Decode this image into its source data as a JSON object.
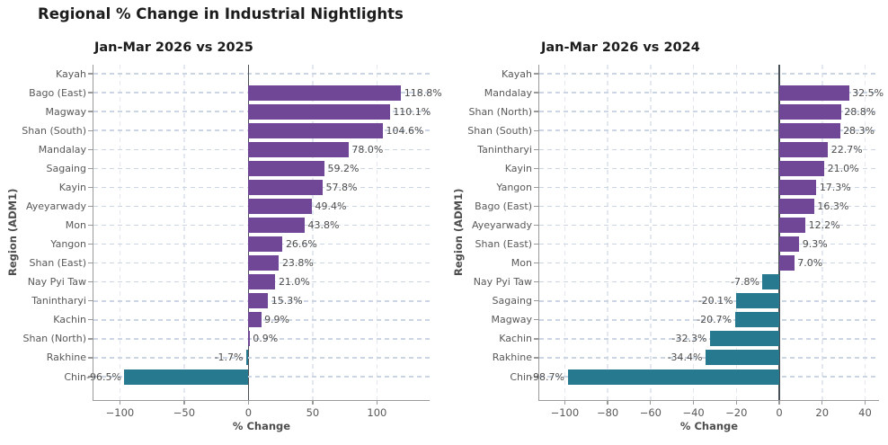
{
  "figure": {
    "title": "Regional % Change in Industrial Nightlights"
  },
  "colors": {
    "positive_bar": "#6f4796",
    "negative_bar": "#27798f",
    "grid": "#ccd5e3",
    "zero_line": "#4a5057",
    "spine": "#9a9a9a",
    "tick_text": "#595959",
    "value_text": "#4d4d4d",
    "title_text": "#1c1c1c"
  },
  "chart_data": [
    {
      "type": "bar",
      "orientation": "horizontal",
      "title": "Jan-Mar 2026 vs 2025",
      "xlabel": "% Change",
      "ylabel": "Region (ADM1)",
      "xlim": [
        -120.6,
        141.0
      ],
      "grid": true,
      "xticks": [
        {
          "v": -100,
          "label": "−100"
        },
        {
          "v": -50,
          "label": "−50"
        },
        {
          "v": 0,
          "label": "0"
        },
        {
          "v": 50,
          "label": "50"
        },
        {
          "v": 100,
          "label": "100"
        }
      ],
      "categories": [
        "Kayah",
        "Bago (East)",
        "Magway",
        "Shan (South)",
        "Mandalay",
        "Sagaing",
        "Kayin",
        "Ayeyarwady",
        "Mon",
        "Yangon",
        "Shan (East)",
        "Nay Pyi Taw",
        "Tanintharyi",
        "Kachin",
        "Shan (North)",
        "Rakhine",
        "Chin"
      ],
      "values": [
        null,
        118.8,
        110.1,
        104.6,
        78.0,
        59.2,
        57.8,
        49.4,
        43.8,
        26.6,
        23.8,
        21.0,
        15.3,
        9.9,
        0.9,
        -1.7,
        -96.5
      ],
      "value_labels": [
        null,
        "118.8%",
        "110.1%",
        "104.6%",
        "78.0%",
        "59.2%",
        "57.8%",
        "49.4%",
        "43.8%",
        "26.6%",
        "23.8%",
        "21.0%",
        "15.3%",
        "9.9%",
        "0.9%",
        "-1.7%",
        "-96.5%"
      ]
    },
    {
      "type": "bar",
      "orientation": "horizontal",
      "title": "Jan-Mar 2026 vs 2024",
      "xlabel": "% Change",
      "ylabel": "Region (ADM1)",
      "xlim": [
        -111.9,
        46.5
      ],
      "grid": true,
      "xticks": [
        {
          "v": -100,
          "label": "−100"
        },
        {
          "v": -80,
          "label": "−80"
        },
        {
          "v": -60,
          "label": "−60"
        },
        {
          "v": -40,
          "label": "−40"
        },
        {
          "v": -20,
          "label": "−20"
        },
        {
          "v": 0,
          "label": "0"
        },
        {
          "v": 20,
          "label": "20"
        },
        {
          "v": 40,
          "label": "40"
        }
      ],
      "categories": [
        "Kayah",
        "Mandalay",
        "Shan (North)",
        "Shan (South)",
        "Tanintharyi",
        "Kayin",
        "Yangon",
        "Bago (East)",
        "Ayeyarwady",
        "Shan (East)",
        "Mon",
        "Nay Pyi Taw",
        "Sagaing",
        "Magway",
        "Kachin",
        "Rakhine",
        "Chin"
      ],
      "values": [
        null,
        32.5,
        28.8,
        28.3,
        22.7,
        21.0,
        17.3,
        16.3,
        12.2,
        9.3,
        7.0,
        -7.8,
        -20.1,
        -20.7,
        -32.3,
        -34.4,
        -98.7
      ],
      "value_labels": [
        null,
        "32.5%",
        "28.8%",
        "28.3%",
        "22.7%",
        "21.0%",
        "17.3%",
        "16.3%",
        "12.2%",
        "9.3%",
        "7.0%",
        "-7.8%",
        "-20.1%",
        "-20.7%",
        "-32.3%",
        "-34.4%",
        "-98.7%"
      ]
    }
  ]
}
